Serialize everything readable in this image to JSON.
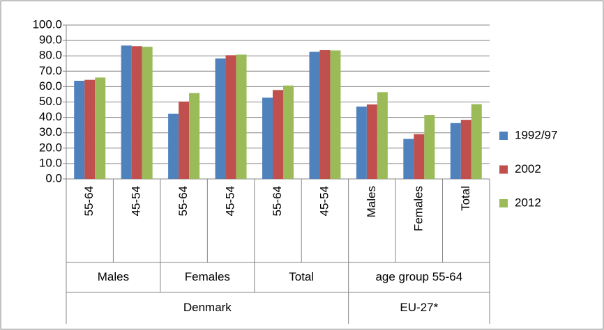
{
  "chart_data": {
    "type": "bar",
    "groups": [
      {
        "label": "Denmark",
        "subgroups": [
          {
            "label": "Males",
            "categories": [
              "55-64",
              "45-54"
            ]
          },
          {
            "label": "Females",
            "categories": [
              "55-64",
              "45-54"
            ]
          },
          {
            "label": "Total",
            "categories": [
              "55-64",
              "45-54"
            ]
          }
        ]
      },
      {
        "label": "EU-27*",
        "subgroups": [
          {
            "label": "age group 55-64",
            "categories": [
              "Males",
              "Females",
              "Total"
            ]
          }
        ]
      }
    ],
    "series": [
      {
        "name": "1992/97",
        "color": "#4f81bd",
        "values": [
          63.8,
          86.7,
          42.3,
          78.3,
          52.8,
          82.6,
          47.0,
          26.0,
          36.3
        ]
      },
      {
        "name": "2002",
        "color": "#c0504d",
        "values": [
          64.4,
          86.3,
          50.3,
          80.4,
          57.8,
          83.7,
          48.4,
          29.1,
          38.4
        ]
      },
      {
        "name": "2012",
        "color": "#9bbb59",
        "values": [
          65.9,
          85.9,
          55.8,
          80.8,
          60.7,
          83.5,
          56.4,
          41.6,
          48.6
        ]
      }
    ],
    "ylim": [
      0,
      100
    ],
    "yticks": [
      {
        "value": 0,
        "label": "0.0"
      },
      {
        "value": 10,
        "label": "10.0"
      },
      {
        "value": 20,
        "label": "20.0"
      },
      {
        "value": 30,
        "label": "30.0"
      },
      {
        "value": 40,
        "label": "40.0"
      },
      {
        "value": 50,
        "label": "50.0"
      },
      {
        "value": 60,
        "label": "60.0"
      },
      {
        "value": 70,
        "label": "70.0"
      },
      {
        "value": 80,
        "label": "80.0"
      },
      {
        "value": 90,
        "label": "90.0"
      },
      {
        "value": 100,
        "label": "100.0"
      }
    ],
    "grid": true,
    "legend": "right"
  }
}
